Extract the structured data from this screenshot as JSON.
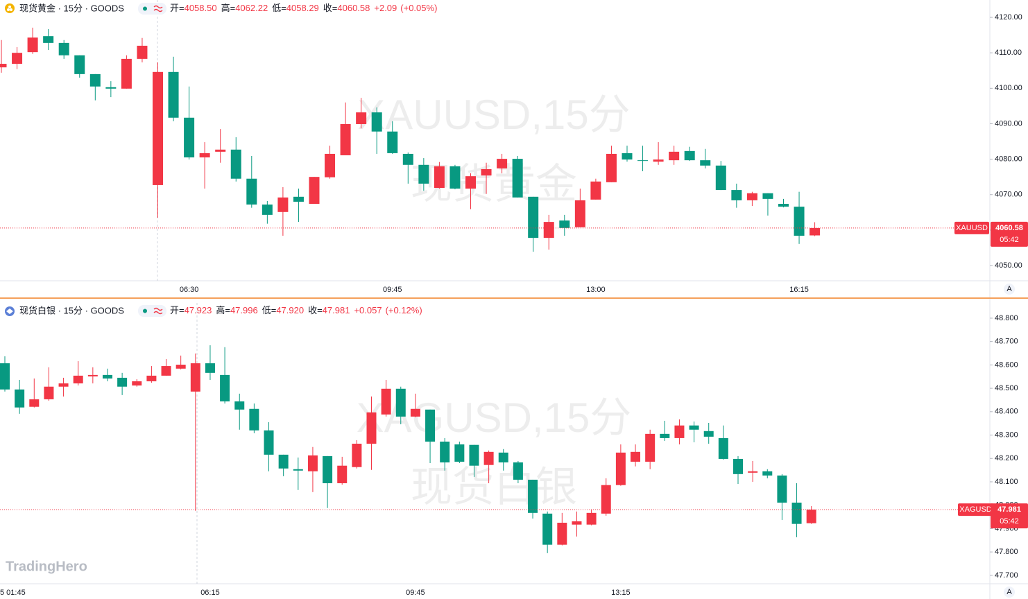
{
  "logo": "TradingHero",
  "chart_data": [
    {
      "type": "candlestick",
      "symbol_title": "现货黄金 · 15分 · GOODS",
      "ohlc_text": [
        {
          "label": "开=",
          "value": "4058.50"
        },
        {
          "label": "高=",
          "value": "4062.22"
        },
        {
          "label": "低=",
          "value": "4058.29"
        },
        {
          "label": "收=",
          "value": "4060.58"
        }
      ],
      "change": "+2.09",
      "change_pct": "(+0.05%)",
      "ticker": "XAUUSD",
      "countdown": "05:42",
      "scale_mode": "A",
      "watermark": [
        "XAUUSD,15分",
        "现货黄金"
      ],
      "up_color": "#f23645",
      "down_color": "#089981",
      "categories": [
        null,
        null,
        null,
        null,
        null,
        null,
        null,
        null,
        null,
        null,
        null,
        null,
        "06:30",
        null,
        null,
        null,
        null,
        null,
        null,
        null,
        null,
        null,
        null,
        null,
        null,
        "09:45",
        null,
        null,
        null,
        null,
        null,
        null,
        null,
        null,
        null,
        null,
        null,
        null,
        "13:00",
        null,
        null,
        null,
        null,
        null,
        null,
        null,
        null,
        null,
        null,
        null,
        null,
        "16:15",
        null
      ],
      "open": [
        4105.9,
        4106.9,
        4110.2,
        4114.7,
        4112.8,
        4109.3,
        4104.0,
        4100.3,
        4099.9,
        4108.3,
        4072.7,
        4104.6,
        4091.7,
        4080.5,
        4082.1,
        4082.7,
        4074.5,
        4067.2,
        4065.1,
        4069.4,
        4067.4,
        4074.9,
        4081.1,
        4089.9,
        4093.2,
        4087.8,
        4081.5,
        4078.4,
        4071.9,
        4078.0,
        4071.7,
        4075.4,
        4077.4,
        4080.1,
        4069.4,
        4057.8,
        4062.7,
        4060.8,
        4068.6,
        4073.5,
        4081.7,
        4079.7,
        4079.3,
        4079.7,
        4082.3,
        4079.7,
        4078.2,
        4071.3,
        4068.4,
        4070.4,
        4067.4,
        4066.6,
        4058.5
      ],
      "high": [
        4113.6,
        4111.6,
        4117.1,
        4116.7,
        4113.6,
        4109.3,
        4104.0,
        4102.0,
        4109.3,
        4114.2,
        4107.3,
        4108.9,
        4100.5,
        4084.8,
        4088.5,
        4086.2,
        4080.9,
        4068.2,
        4072.1,
        4071.7,
        4075.0,
        4083.8,
        4096.0,
        4097.3,
        4094.6,
        4090.7,
        4081.9,
        4080.3,
        4079.2,
        4078.4,
        4076.0,
        4079.0,
        4081.5,
        4080.9,
        4069.4,
        4064.3,
        4064.3,
        4071.7,
        4074.5,
        4083.8,
        4083.8,
        4083.8,
        4084.8,
        4083.8,
        4083.5,
        4082.9,
        4079.5,
        4073.1,
        4070.8,
        4070.4,
        4068.8,
        4070.8,
        4062.22
      ],
      "low": [
        4104.4,
        4105.4,
        4109.7,
        4110.8,
        4108.3,
        4103.0,
        4096.6,
        4097.5,
        4099.9,
        4107.3,
        4063.5,
        4090.7,
        4079.9,
        4071.7,
        4079.0,
        4073.7,
        4066.3,
        4061.8,
        4058.4,
        4062.3,
        4067.4,
        4074.5,
        4081.1,
        4088.7,
        4081.5,
        4081.5,
        4073.1,
        4071.1,
        4071.7,
        4071.5,
        4065.9,
        4070.2,
        4076.0,
        4069.2,
        4053.9,
        4054.5,
        4058.4,
        4060.8,
        4068.6,
        4073.5,
        4079.3,
        4076.6,
        4078.4,
        4078.4,
        4079.5,
        4077.4,
        4071.3,
        4066.3,
        4066.8,
        4064.1,
        4066.4,
        4056.1,
        4058.29
      ],
      "close": [
        4106.9,
        4110.0,
        4114.3,
        4112.8,
        4109.3,
        4104.0,
        4100.5,
        4099.9,
        4108.3,
        4112.0,
        4104.6,
        4091.7,
        4080.5,
        4081.7,
        4082.7,
        4074.5,
        4067.2,
        4064.3,
        4069.2,
        4068.0,
        4075.0,
        4081.5,
        4089.9,
        4093.2,
        4087.8,
        4081.7,
        4078.4,
        4073.1,
        4078.0,
        4071.7,
        4075.2,
        4077.2,
        4080.1,
        4069.2,
        4057.8,
        4062.3,
        4060.6,
        4068.4,
        4073.7,
        4081.5,
        4079.9,
        4079.5,
        4079.9,
        4082.1,
        4079.7,
        4078.2,
        4071.3,
        4068.4,
        4070.4,
        4068.8,
        4066.6,
        4058.4,
        4060.58
      ],
      "ylim": [
        4045.7,
        4124.9
      ],
      "yticks": [
        {
          "value": 4050,
          "label": "4050.00"
        },
        {
          "value": 4060,
          "label": "4060.00"
        },
        {
          "value": 4070,
          "label": "4070.00"
        },
        {
          "value": 4080,
          "label": "4080.00"
        },
        {
          "value": 4090,
          "label": "4090.00"
        },
        {
          "value": 4100,
          "label": "4100.00"
        },
        {
          "value": 4110,
          "label": "4110.00"
        },
        {
          "value": 4120,
          "label": "4120.00"
        }
      ]
    },
    {
      "type": "candlestick",
      "symbol_title": "现货白银 · 15分 · GOODS",
      "ohlc_text": [
        {
          "label": "开=",
          "value": "47.923"
        },
        {
          "label": "高=",
          "value": "47.996"
        },
        {
          "label": "低=",
          "value": "47.920"
        },
        {
          "label": "收=",
          "value": "47.981"
        }
      ],
      "change": "+0.057",
      "change_pct": "(+0.12%)",
      "ticker": "XAGUSD",
      "countdown": "05:42",
      "scale_mode": "A",
      "watermark": [
        "XAGUSD,15分",
        "现货白银"
      ],
      "up_color": "#f23645",
      "down_color": "#089981",
      "x_start_label": "5 01:45",
      "categories": [
        null,
        null,
        null,
        null,
        null,
        null,
        null,
        null,
        null,
        null,
        null,
        null,
        null,
        null,
        "06:15",
        null,
        null,
        null,
        null,
        null,
        null,
        null,
        null,
        null,
        null,
        null,
        null,
        null,
        "09:45",
        null,
        null,
        null,
        null,
        null,
        null,
        null,
        null,
        null,
        null,
        null,
        null,
        null,
        "13:15",
        null,
        null,
        null,
        null,
        null,
        null,
        null,
        null,
        null,
        null,
        null,
        null,
        null
      ],
      "open": [
        48.607,
        48.495,
        48.421,
        48.453,
        48.507,
        48.521,
        48.551,
        48.557,
        48.545,
        48.512,
        48.53,
        48.554,
        48.584,
        48.486,
        48.607,
        48.557,
        48.444,
        48.412,
        48.32,
        48.216,
        48.154,
        48.145,
        48.21,
        48.094,
        48.163,
        48.263,
        48.388,
        48.498,
        48.379,
        48.409,
        48.272,
        48.26,
        48.258,
        48.172,
        48.225,
        48.183,
        48.109,
        47.964,
        47.831,
        47.917,
        47.917,
        47.964,
        48.086,
        48.186,
        48.186,
        48.305,
        48.287,
        48.341,
        48.317,
        48.287,
        48.198,
        48.139,
        48.145,
        48.127,
        48.011,
        47.923
      ],
      "high": [
        48.637,
        48.536,
        48.542,
        48.59,
        48.545,
        48.616,
        48.59,
        48.584,
        48.566,
        48.539,
        48.595,
        48.625,
        48.64,
        48.649,
        48.684,
        48.676,
        48.477,
        48.435,
        48.355,
        48.216,
        48.204,
        48.249,
        48.21,
        48.207,
        48.278,
        48.465,
        48.536,
        48.507,
        48.477,
        48.409,
        48.287,
        48.272,
        48.258,
        48.234,
        48.24,
        48.189,
        48.109,
        47.973,
        47.967,
        47.973,
        47.982,
        48.115,
        48.26,
        48.26,
        48.323,
        48.361,
        48.367,
        48.358,
        48.352,
        48.341,
        48.21,
        48.189,
        48.154,
        48.133,
        48.094,
        47.996
      ],
      "low": [
        48.486,
        48.391,
        48.418,
        48.447,
        48.465,
        48.512,
        48.521,
        48.53,
        48.471,
        48.507,
        48.524,
        48.554,
        48.581,
        47.976,
        48.536,
        48.435,
        48.323,
        48.308,
        48.145,
        48.124,
        48.065,
        48.056,
        47.988,
        48.088,
        48.157,
        48.151,
        48.379,
        48.346,
        48.376,
        48.18,
        48.148,
        48.18,
        48.121,
        48.094,
        48.148,
        48.094,
        47.943,
        47.795,
        47.828,
        47.866,
        47.914,
        47.955,
        48.083,
        48.166,
        48.154,
        48.275,
        48.26,
        48.269,
        48.263,
        48.195,
        48.091,
        48.1,
        48.115,
        47.937,
        47.863,
        47.92
      ],
      "close": [
        48.495,
        48.418,
        48.453,
        48.507,
        48.521,
        48.554,
        48.557,
        48.542,
        48.507,
        48.53,
        48.554,
        48.595,
        48.601,
        48.607,
        48.566,
        48.444,
        48.409,
        48.32,
        48.216,
        48.157,
        48.148,
        48.213,
        48.094,
        48.169,
        48.263,
        48.397,
        48.498,
        48.379,
        48.412,
        48.272,
        48.183,
        48.186,
        48.169,
        48.228,
        48.183,
        48.109,
        47.967,
        47.831,
        47.925,
        47.931,
        47.967,
        48.086,
        48.225,
        48.228,
        48.305,
        48.287,
        48.341,
        48.323,
        48.293,
        48.198,
        48.133,
        48.145,
        48.127,
        48.011,
        47.92,
        47.981
      ],
      "ylim": [
        47.664,
        48.865
      ],
      "yticks": [
        {
          "value": 47.7,
          "label": "47.700"
        },
        {
          "value": 47.8,
          "label": "47.800"
        },
        {
          "value": 47.9,
          "label": "47.900"
        },
        {
          "value": 48,
          "label": "48.000"
        },
        {
          "value": 48.1,
          "label": "48.100"
        },
        {
          "value": 48.2,
          "label": "48.200"
        },
        {
          "value": 48.3,
          "label": "48.300"
        },
        {
          "value": 48.4,
          "label": "48.400"
        },
        {
          "value": 48.5,
          "label": "48.500"
        },
        {
          "value": 48.6,
          "label": "48.600"
        },
        {
          "value": 48.7,
          "label": "48.700"
        },
        {
          "value": 48.8,
          "label": "48.800"
        }
      ]
    }
  ]
}
